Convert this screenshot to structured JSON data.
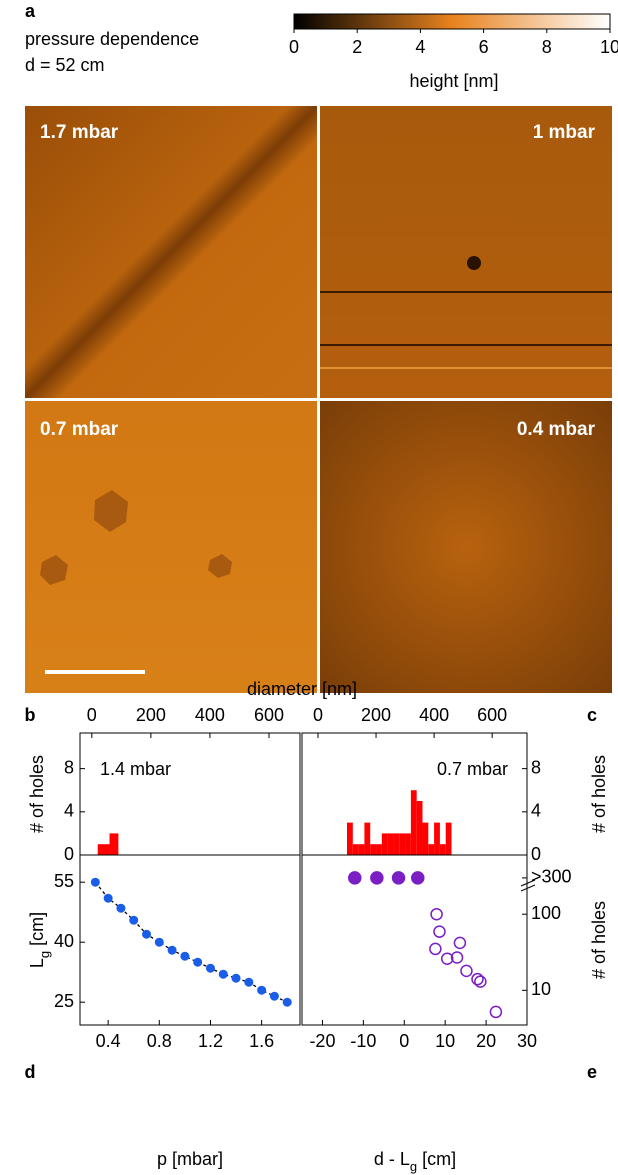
{
  "panel_a": {
    "label": "a",
    "title": "pressure dependence",
    "subtitle": "d = 52 cm",
    "images": [
      "1.7 mbar",
      "1 mbar",
      "0.7 mbar",
      "0.4 mbar"
    ]
  },
  "chart_data": [
    {
      "type": "colorbar",
      "xlim": [
        0,
        10
      ],
      "xticks": [
        0,
        2,
        4,
        6,
        8,
        10
      ],
      "xlabel": "height [nm]",
      "colors": [
        "#000000",
        "#e8821e",
        "#ffffff"
      ]
    },
    {
      "type": "histogram",
      "panel": "b",
      "annotation": "1.4 mbar",
      "xlabel": "diameter [nm]",
      "ylabel": "# of holes",
      "xlim": [
        -40,
        705
      ],
      "xticks": [
        0,
        200,
        400,
        600
      ],
      "ylim": [
        0,
        11.3
      ],
      "yticks": [
        0,
        4,
        8
      ],
      "bins": [
        20,
        60,
        90
      ],
      "values": [
        1,
        2
      ],
      "color": "#ff0000"
    },
    {
      "type": "histogram",
      "panel": "c",
      "annotation": "0.7 mbar",
      "ylabel": "# of holes",
      "xlim": [
        -55,
        720
      ],
      "xticks": [
        0,
        200,
        400,
        600
      ],
      "ylim": [
        0,
        11.3
      ],
      "yticks": [
        0,
        4,
        8
      ],
      "bins": [
        100,
        120,
        140,
        160,
        180,
        200,
        220,
        240,
        260,
        280,
        300,
        320,
        340,
        360,
        380,
        400,
        420,
        440,
        460
      ],
      "values": [
        3,
        1,
        1,
        3,
        1,
        1,
        2,
        2,
        2,
        2,
        2,
        6,
        5,
        3,
        1,
        3,
        1,
        3
      ],
      "color": "#ff0000"
    },
    {
      "type": "line",
      "panel": "d",
      "xlabel": "p [mbar]",
      "ylabel": [
        "L",
        "g",
        " [cm]"
      ],
      "xlim": [
        0.18,
        1.9
      ],
      "xticks": [
        0.4,
        0.8,
        1.2,
        1.6
      ],
      "ylim": [
        19.3,
        61.8
      ],
      "yticks": [
        25,
        40,
        55
      ],
      "x": [
        0.3,
        0.4,
        0.5,
        0.6,
        0.7,
        0.8,
        0.9,
        1.0,
        1.1,
        1.2,
        1.3,
        1.4,
        1.5,
        1.6,
        1.7,
        1.8
      ],
      "series": [
        {
          "color": "#1a5ee8",
          "line_style": "dashed",
          "values": [
            55,
            51,
            48.5,
            45.5,
            42,
            40,
            38,
            36.5,
            35,
            33.5,
            32,
            31,
            30,
            28,
            26.5,
            25
          ]
        }
      ]
    },
    {
      "type": "scatter",
      "panel": "e",
      "xlabel": [
        "d - L",
        "g",
        " [cm]"
      ],
      "ylabel": "# of holes",
      "log_y": true,
      "xlim": [
        -25,
        30
      ],
      "xticks": [
        -20,
        -10,
        0,
        10,
        20,
        30
      ],
      "ylim": [
        3.5,
        600
      ],
      "yticks": [
        10,
        100,
        {
          "value": 300,
          "label": ">300"
        }
      ],
      "series": [
        {
          "color": "#7a1fc4",
          "filled": true,
          "x": [
            -12.1,
            -6.7,
            -1.4,
            3.3
          ],
          "values": [
            300,
            300,
            300,
            300
          ]
        },
        {
          "color": "#7a1fc4",
          "filled": false,
          "x": [
            7.9,
            8.6,
            7.6,
            10.5,
            13.6,
            12.9,
            15.2,
            17.9,
            18.6,
            22.4
          ],
          "values": [
            100,
            59,
            35,
            26,
            42,
            27,
            18,
            14,
            13,
            5.2
          ]
        }
      ]
    }
  ]
}
